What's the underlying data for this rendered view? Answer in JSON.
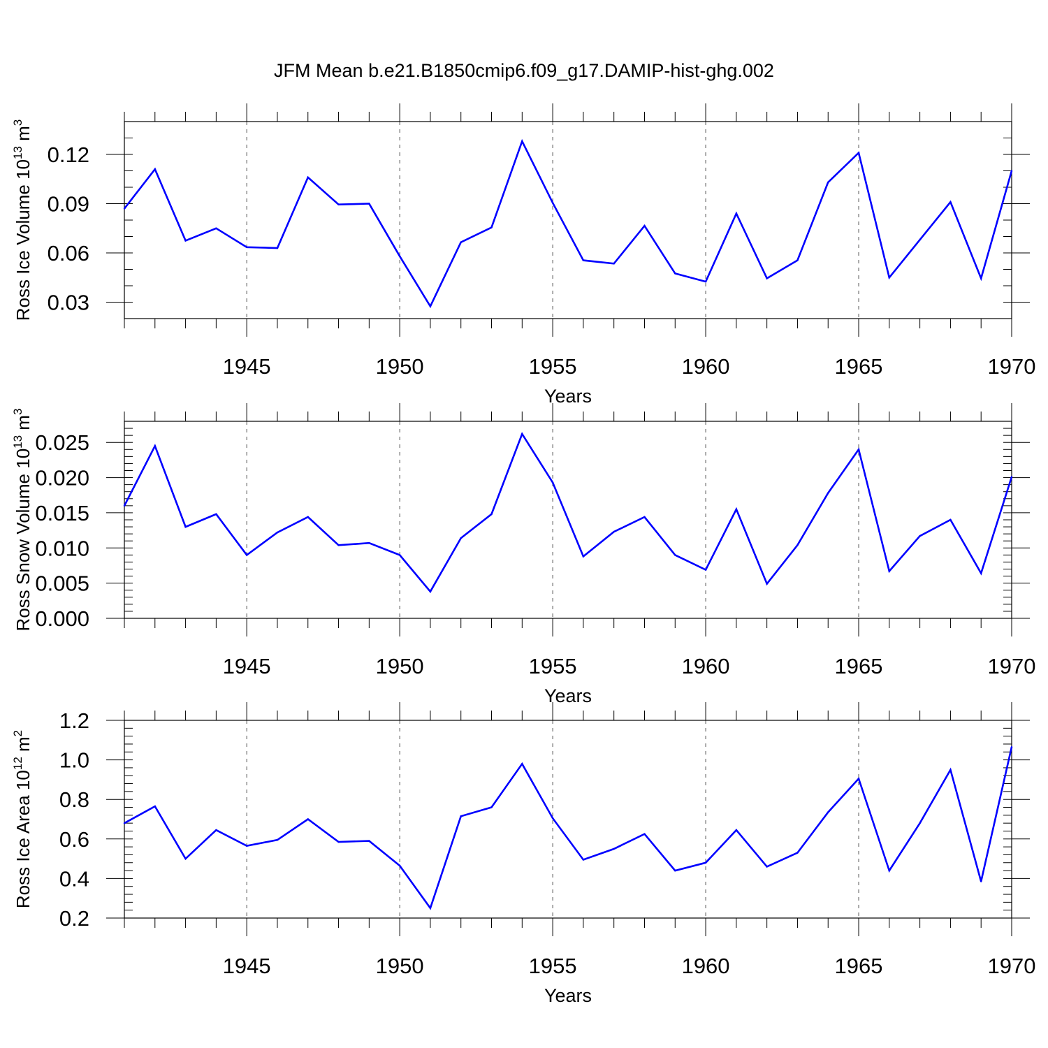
{
  "title": "JFM Mean b.e21.B1850cmip6.f09_g17.DAMIP-hist-ghg.002",
  "line_color": "#0000ff",
  "chart_data": [
    {
      "type": "line",
      "ylabel": {
        "text": "Ross Ice Volume 10",
        "sup": "13",
        "unit": " m",
        "unit_sup": "3"
      },
      "xlabel": "Years",
      "xlim": [
        1941,
        1970
      ],
      "ylim": [
        0.02,
        0.14
      ],
      "x_ticks": [
        1945,
        1950,
        1955,
        1960,
        1965,
        1970
      ],
      "x_tick_labels": [
        "1945",
        "1950",
        "1955",
        "1960",
        "1965",
        "1970"
      ],
      "y_ticks": [
        0.03,
        0.06,
        0.09,
        0.12
      ],
      "y_tick_labels": [
        "0.03",
        "0.06",
        "0.09",
        "0.12"
      ],
      "y_minor_step": 0.01,
      "x": [
        1941,
        1942,
        1943,
        1944,
        1945,
        1946,
        1947,
        1948,
        1949,
        1950,
        1951,
        1952,
        1953,
        1954,
        1955,
        1956,
        1957,
        1958,
        1959,
        1960,
        1961,
        1962,
        1963,
        1964,
        1965,
        1966,
        1967,
        1968,
        1969,
        1970
      ],
      "values": [
        0.087,
        0.111,
        0.0675,
        0.075,
        0.0635,
        0.063,
        0.106,
        0.0895,
        0.09,
        0.058,
        0.0275,
        0.0665,
        0.0755,
        0.128,
        0.0905,
        0.0555,
        0.0535,
        0.0765,
        0.0475,
        0.0425,
        0.084,
        0.0445,
        0.0555,
        0.103,
        0.121,
        0.045,
        0.068,
        0.091,
        0.0445,
        0.11
      ]
    },
    {
      "type": "line",
      "ylabel": {
        "text": "Ross Snow Volume 10",
        "sup": "13",
        "unit": " m",
        "unit_sup": "3"
      },
      "xlabel": "Years",
      "xlim": [
        1941,
        1970
      ],
      "ylim": [
        0.0,
        0.028
      ],
      "x_ticks": [
        1945,
        1950,
        1955,
        1960,
        1965,
        1970
      ],
      "x_tick_labels": [
        "1945",
        "1950",
        "1955",
        "1960",
        "1965",
        "1970"
      ],
      "y_ticks": [
        0.0,
        0.005,
        0.01,
        0.015,
        0.02,
        0.025
      ],
      "y_tick_labels": [
        "0.000",
        "0.005",
        "0.010",
        "0.015",
        "0.020",
        "0.025"
      ],
      "y_minor_step": 0.001,
      "x": [
        1941,
        1942,
        1943,
        1944,
        1945,
        1946,
        1947,
        1948,
        1949,
        1950,
        1951,
        1952,
        1953,
        1954,
        1955,
        1956,
        1957,
        1958,
        1959,
        1960,
        1961,
        1962,
        1963,
        1964,
        1965,
        1966,
        1967,
        1968,
        1969,
        1970
      ],
      "values": [
        0.016,
        0.0245,
        0.013,
        0.0148,
        0.009,
        0.0122,
        0.0144,
        0.0104,
        0.0107,
        0.009,
        0.0038,
        0.0114,
        0.0148,
        0.0262,
        0.0193,
        0.0088,
        0.0123,
        0.0144,
        0.009,
        0.0069,
        0.0155,
        0.0049,
        0.0104,
        0.0178,
        0.024,
        0.0067,
        0.0117,
        0.014,
        0.0064,
        0.0201
      ]
    },
    {
      "type": "line",
      "ylabel": {
        "text": "Ross Ice Area 10",
        "sup": "12",
        "unit": " m",
        "unit_sup": "2"
      },
      "xlabel": "Years",
      "xlim": [
        1941,
        1970
      ],
      "ylim": [
        0.2,
        1.2
      ],
      "x_ticks": [
        1945,
        1950,
        1955,
        1960,
        1965,
        1970
      ],
      "x_tick_labels": [
        "1945",
        "1950",
        "1955",
        "1960",
        "1965",
        "1970"
      ],
      "y_ticks": [
        0.2,
        0.4,
        0.6,
        0.8,
        1.0,
        1.2
      ],
      "y_tick_labels": [
        "0.2",
        "0.4",
        "0.6",
        "0.8",
        "1.0",
        "1.2"
      ],
      "y_minor_step": 0.04,
      "x": [
        1941,
        1942,
        1943,
        1944,
        1945,
        1946,
        1947,
        1948,
        1949,
        1950,
        1951,
        1952,
        1953,
        1954,
        1955,
        1956,
        1957,
        1958,
        1959,
        1960,
        1961,
        1962,
        1963,
        1964,
        1965,
        1966,
        1967,
        1968,
        1969,
        1970
      ],
      "values": [
        0.68,
        0.765,
        0.5,
        0.645,
        0.565,
        0.595,
        0.7,
        0.585,
        0.59,
        0.465,
        0.25,
        0.715,
        0.76,
        0.98,
        0.705,
        0.495,
        0.55,
        0.625,
        0.44,
        0.48,
        0.645,
        0.46,
        0.53,
        0.735,
        0.905,
        0.44,
        0.68,
        0.95,
        0.385,
        1.065
      ]
    }
  ]
}
